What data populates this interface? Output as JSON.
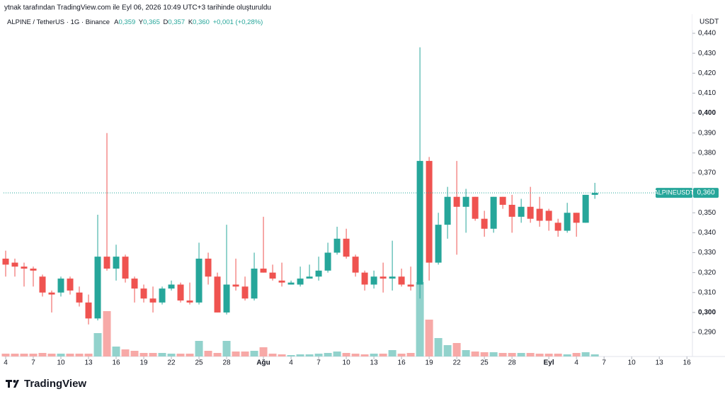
{
  "header": "ytnak tarafından TradingView.com ile Eyl 06, 2026 10:49 UTC+3 tarihinde oluşturuldu",
  "legend": {
    "symbol": "ALPINE / TetherUS · 1G · Binance",
    "open_key": "A",
    "open": "0,359",
    "high_key": "Y",
    "high": "0,365",
    "low_key": "D",
    "low": "0,357",
    "close_key": "K",
    "close": "0,360",
    "change": "+0,001 (+0,28%)"
  },
  "logo": "TradingView",
  "chart_data": {
    "type": "candlestick",
    "x": [
      4,
      5,
      6,
      7,
      8,
      9,
      10,
      11,
      12,
      13,
      14,
      15,
      16,
      17,
      18,
      19,
      20,
      21,
      22,
      23,
      24,
      25,
      26,
      27,
      28,
      29,
      30,
      31,
      32,
      33,
      34,
      35,
      36,
      37,
      38,
      39,
      40,
      41,
      42,
      43,
      44,
      45,
      46,
      47,
      48,
      49,
      50,
      51,
      52,
      53,
      54,
      55,
      56,
      57,
      58,
      59,
      60,
      61,
      62,
      63,
      64,
      65,
      66,
      67,
      68
    ],
    "open": [
      0.327,
      0.325,
      0.323,
      0.322,
      0.318,
      0.31,
      0.31,
      0.317,
      0.31,
      0.305,
      0.297,
      0.328,
      0.322,
      0.328,
      0.317,
      0.312,
      0.307,
      0.305,
      0.312,
      0.314,
      0.306,
      0.305,
      0.327,
      0.318,
      0.3,
      0.314,
      0.313,
      0.307,
      0.322,
      0.32,
      0.316,
      0.314,
      0.314,
      0.317,
      0.318,
      0.321,
      0.33,
      0.337,
      0.328,
      0.32,
      0.314,
      0.318,
      0.317,
      0.318,
      0.314,
      0.314,
      0.376,
      0.325,
      0.344,
      0.358,
      0.353,
      0.358,
      0.347,
      0.342,
      0.358,
      0.354,
      0.348,
      0.353,
      0.352,
      0.351,
      0.345,
      0.341,
      0.35,
      0.345,
      0.359
    ],
    "high": [
      0.331,
      0.327,
      0.325,
      0.323,
      0.319,
      0.311,
      0.318,
      0.318,
      0.313,
      0.309,
      0.349,
      0.39,
      0.334,
      0.329,
      0.318,
      0.314,
      0.313,
      0.313,
      0.316,
      0.315,
      0.315,
      0.335,
      0.33,
      0.32,
      0.344,
      0.327,
      0.318,
      0.33,
      0.348,
      0.324,
      0.325,
      0.316,
      0.323,
      0.324,
      0.328,
      0.335,
      0.343,
      0.342,
      0.329,
      0.321,
      0.321,
      0.325,
      0.336,
      0.322,
      0.323,
      0.433,
      0.378,
      0.35,
      0.363,
      0.376,
      0.362,
      0.358,
      0.351,
      0.358,
      0.358,
      0.359,
      0.357,
      0.363,
      0.358,
      0.352,
      0.347,
      0.355,
      0.35,
      0.359,
      0.365
    ],
    "low": [
      0.318,
      0.318,
      0.313,
      0.313,
      0.308,
      0.3,
      0.308,
      0.309,
      0.303,
      0.294,
      0.296,
      0.321,
      0.316,
      0.315,
      0.305,
      0.305,
      0.3,
      0.304,
      0.311,
      0.305,
      0.304,
      0.304,
      0.314,
      0.3,
      0.299,
      0.311,
      0.306,
      0.306,
      0.32,
      0.316,
      0.313,
      0.314,
      0.313,
      0.317,
      0.316,
      0.32,
      0.329,
      0.327,
      0.318,
      0.311,
      0.312,
      0.31,
      0.311,
      0.313,
      0.311,
      0.307,
      0.316,
      0.324,
      0.337,
      0.329,
      0.34,
      0.346,
      0.338,
      0.34,
      0.352,
      0.34,
      0.345,
      0.345,
      0.343,
      0.341,
      0.338,
      0.34,
      0.338,
      0.345,
      0.357
    ],
    "close": [
      0.324,
      0.323,
      0.322,
      0.321,
      0.31,
      0.309,
      0.317,
      0.311,
      0.305,
      0.297,
      0.328,
      0.322,
      0.328,
      0.317,
      0.312,
      0.307,
      0.305,
      0.312,
      0.314,
      0.306,
      0.305,
      0.327,
      0.318,
      0.3,
      0.314,
      0.313,
      0.307,
      0.322,
      0.32,
      0.317,
      0.315,
      0.315,
      0.317,
      0.318,
      0.321,
      0.33,
      0.337,
      0.328,
      0.32,
      0.314,
      0.318,
      0.317,
      0.318,
      0.314,
      0.313,
      0.376,
      0.325,
      0.344,
      0.358,
      0.353,
      0.358,
      0.347,
      0.342,
      0.358,
      0.354,
      0.348,
      0.353,
      0.347,
      0.346,
      0.346,
      0.341,
      0.35,
      0.345,
      0.359,
      0.36
    ],
    "volume": [
      4,
      4,
      4,
      4,
      5,
      4,
      4,
      4,
      4,
      4,
      33,
      64,
      14,
      10,
      8,
      5,
      5,
      5,
      4,
      4,
      4,
      22,
      8,
      5,
      22,
      7,
      7,
      8,
      13,
      4,
      3,
      2,
      3,
      3,
      4,
      5,
      7,
      5,
      4,
      3,
      4,
      4,
      9,
      4,
      5,
      105,
      52,
      26,
      16,
      19,
      9,
      7,
      6,
      6,
      5,
      5,
      5,
      5,
      4,
      4,
      4,
      3,
      5,
      6,
      3
    ],
    "up_color": "#26a69a",
    "down_color": "#ef5350",
    "up_volume_color": "#92d2cc",
    "down_volume_color": "#f7a9a7",
    "xlim": [
      3.77,
      78.6
    ],
    "xticks": [
      {
        "value": 4,
        "label": "4"
      },
      {
        "value": 7,
        "label": "7"
      },
      {
        "value": 10,
        "label": "10"
      },
      {
        "value": 13,
        "label": "13"
      },
      {
        "value": 16,
        "label": "16"
      },
      {
        "value": 19,
        "label": "19"
      },
      {
        "value": 22,
        "label": "22"
      },
      {
        "value": 25,
        "label": "25"
      },
      {
        "value": 28,
        "label": "28"
      },
      {
        "value": 32,
        "label": "Ağu"
      },
      {
        "value": 35,
        "label": "4"
      },
      {
        "value": 38,
        "label": "7"
      },
      {
        "value": 41,
        "label": "10"
      },
      {
        "value": 44,
        "label": "13"
      },
      {
        "value": 47,
        "label": "16"
      },
      {
        "value": 50,
        "label": "19"
      },
      {
        "value": 53,
        "label": "22"
      },
      {
        "value": 56,
        "label": "25"
      },
      {
        "value": 59,
        "label": "28"
      },
      {
        "value": 63,
        "label": "Eyl"
      },
      {
        "value": 66,
        "label": "4"
      },
      {
        "value": 69,
        "label": "7"
      },
      {
        "value": 72,
        "label": "10"
      },
      {
        "value": 75,
        "label": "13"
      },
      {
        "value": 78,
        "label": "16"
      }
    ],
    "ylim": [
      0.279,
      0.4496
    ],
    "y_unit": "USDT",
    "yticks": [
      {
        "value": 0.29,
        "label": "0,290"
      },
      {
        "value": 0.3,
        "label": "0,300"
      },
      {
        "value": 0.31,
        "label": "0,310"
      },
      {
        "value": 0.32,
        "label": "0,320"
      },
      {
        "value": 0.33,
        "label": "0,330"
      },
      {
        "value": 0.34,
        "label": "0,340"
      },
      {
        "value": 0.35,
        "label": "0,350"
      },
      {
        "value": 0.36,
        "label": "0,360"
      },
      {
        "value": 0.37,
        "label": "0,370"
      },
      {
        "value": 0.38,
        "label": "0,380"
      },
      {
        "value": 0.39,
        "label": "0,390"
      },
      {
        "value": 0.4,
        "label": "0,400"
      },
      {
        "value": 0.41,
        "label": "0,410"
      },
      {
        "value": 0.42,
        "label": "0,420"
      },
      {
        "value": 0.43,
        "label": "0,430"
      },
      {
        "value": 0.44,
        "label": "0,440"
      }
    ],
    "current_price": {
      "symbol": "ALPINEUSDT",
      "value": 0.36,
      "label": "0,360"
    },
    "grid": false
  }
}
